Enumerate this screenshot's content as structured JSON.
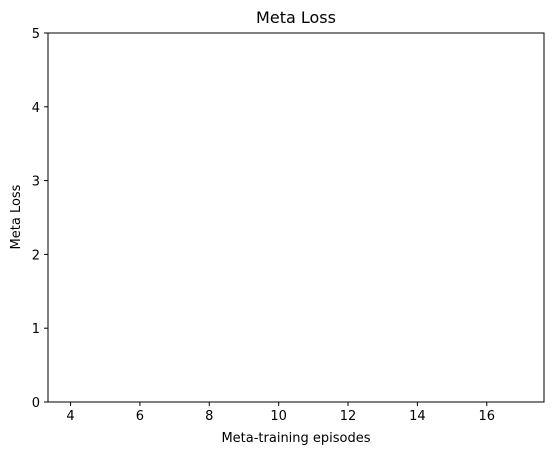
{
  "chart_data": {
    "type": "line",
    "title": "Meta Loss",
    "xlabel": "Meta-training episodes",
    "ylabel": "Meta Loss",
    "xlim": [
      3.35,
      17.65
    ],
    "ylim": [
      0,
      5
    ],
    "xticks": [
      4,
      6,
      8,
      10,
      12,
      14,
      16
    ],
    "xtick_labels": [
      "4",
      "6",
      "8",
      "10",
      "12",
      "14",
      "16"
    ],
    "yticks": [
      0,
      1,
      2,
      3,
      4,
      5
    ],
    "ytick_labels": [
      "0",
      "1",
      "2",
      "3",
      "4",
      "5"
    ],
    "grid": false,
    "series": [
      {
        "x": [],
        "y": [],
        "color": "#1f77b4"
      }
    ]
  }
}
